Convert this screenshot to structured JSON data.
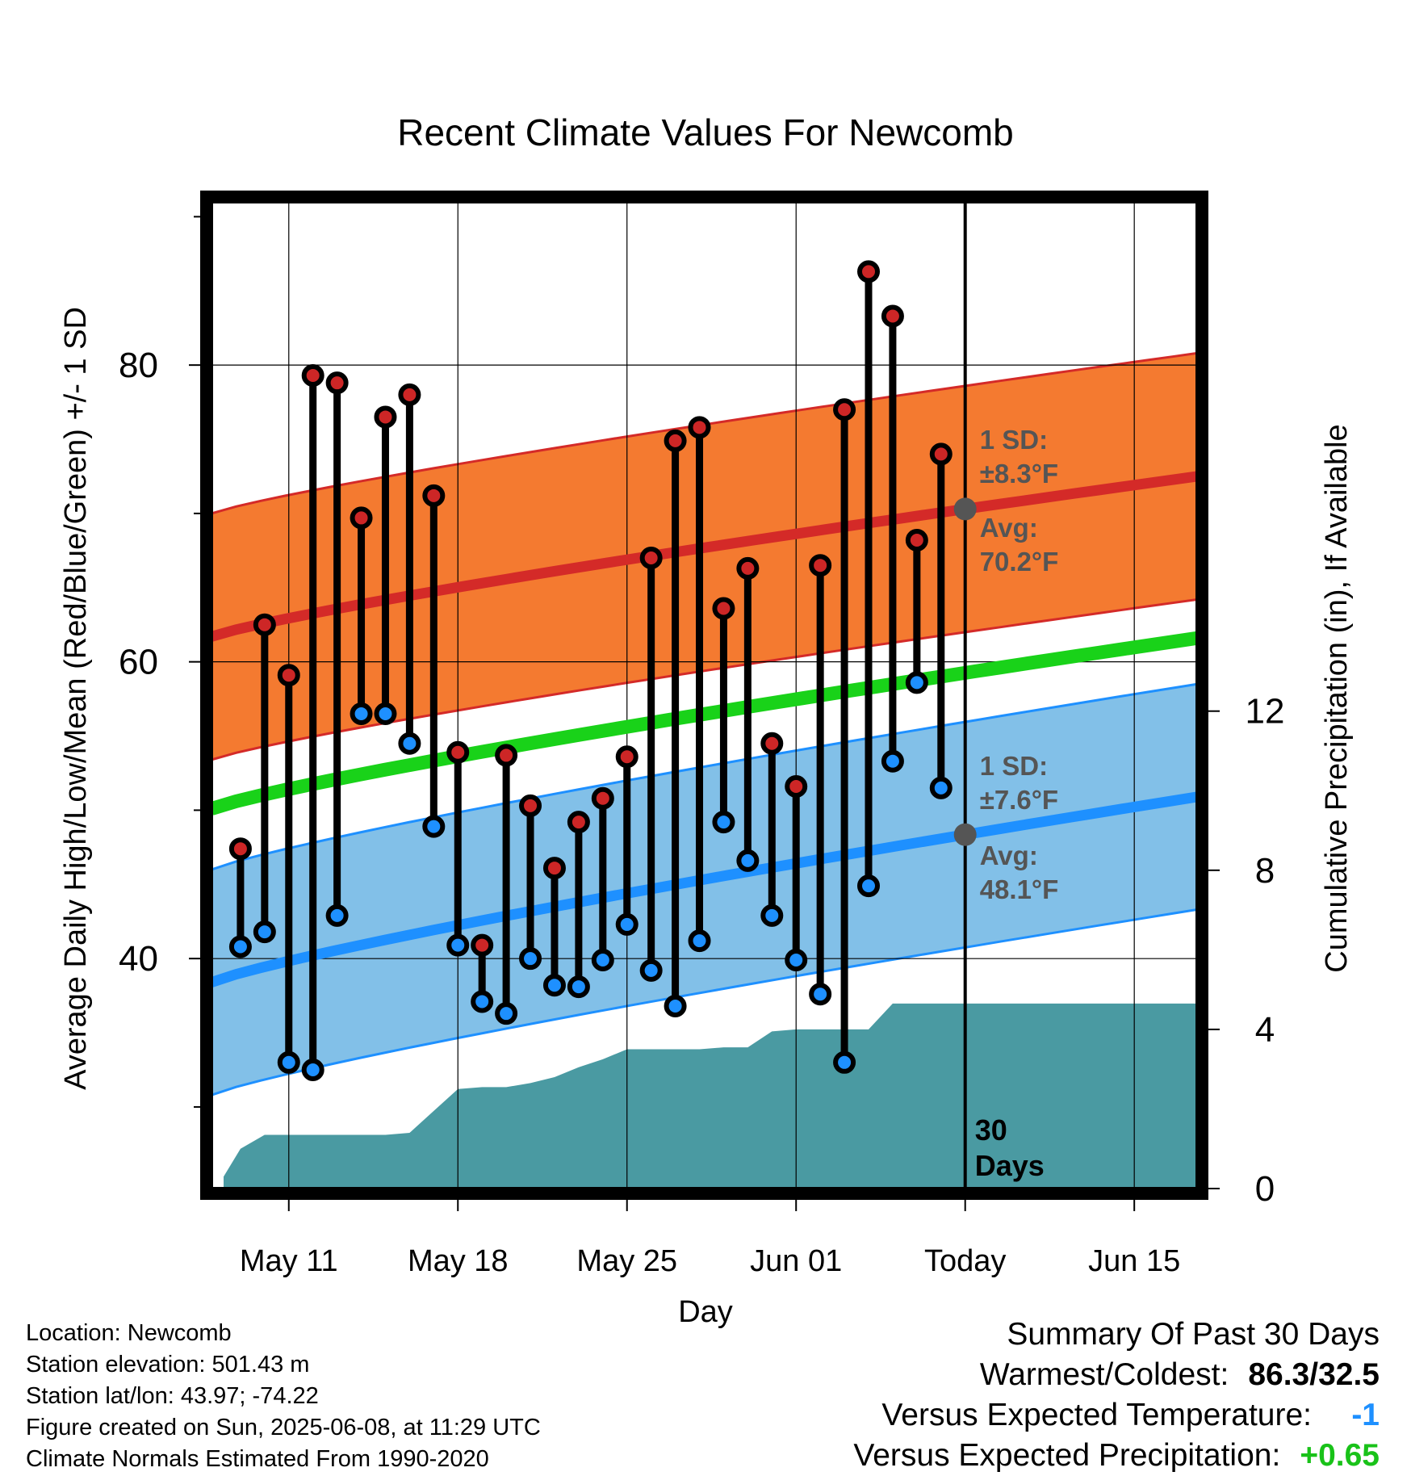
{
  "chart_data": {
    "type": "line",
    "title": "Recent Climate Values For Newcomb",
    "xlabel": "Day",
    "ylabel_left": "Average Daily High/Low/Mean (Red/Blue/Green) +/- 1 SD",
    "ylabel_right": "Cumulative Precipitation (in), If Available",
    "x_tick_labels": [
      "May 11",
      "May 18",
      "May 25",
      "Jun 01",
      "Today",
      "Jun 15"
    ],
    "x_tick_days": [
      11,
      18,
      25,
      32,
      39,
      46
    ],
    "xlim": [
      7.8,
      48.6
    ],
    "ylim_left": [
      24.5,
      91
    ],
    "y_left_major_ticks": [
      40,
      60,
      80
    ],
    "y_left_minor_ticks": [
      30,
      50,
      70,
      90
    ],
    "ylim_right": [
      0,
      24.8
    ],
    "y_right_ticks": [
      0,
      4,
      8,
      12
    ],
    "today_day": 39,
    "today_label": "30\nDays",
    "grid": true,
    "colors": {
      "high_band": "#f47a30",
      "high_mean": "#d42a28",
      "low_band": "#82c0e8",
      "low_mean": "#1e90ff",
      "daily_mean": "#19d219",
      "precip": "#4a9aa2",
      "high_marker": "#cd2626",
      "low_marker": "#1e90ff",
      "avg_dot": "#555555",
      "annotation": "#555555",
      "temp_departure": "#1e90ff",
      "precip_departure": "#19c219"
    },
    "normals": {
      "high_avg_start": 61.7,
      "high_avg_end": 72.5,
      "high_sd": 8.3,
      "low_avg_start": 38.4,
      "low_avg_end": 50.9,
      "low_sd": 7.6,
      "mean_start": 50.1,
      "mean_end": 61.6
    },
    "annotations": {
      "high_sd_label": "1 SD:",
      "high_sd_value": "±8.3°F",
      "high_avg_label": "Avg:",
      "high_avg_value": "70.2°F",
      "low_sd_label": "1 SD:",
      "low_sd_value": "±7.6°F",
      "low_avg_label": "Avg:",
      "low_avg_value": "48.1°F"
    },
    "series": [
      {
        "name": "Daily High",
        "x": [
          9,
          10,
          11,
          12,
          13,
          14,
          15,
          16,
          17,
          18,
          19,
          20,
          21,
          22,
          23,
          24,
          25,
          26,
          27,
          28,
          29,
          30,
          31,
          32,
          33,
          34,
          35,
          36,
          37,
          38
        ],
        "values": [
          47.4,
          62.5,
          59.1,
          79.3,
          78.8,
          69.7,
          76.5,
          78.0,
          71.2,
          53.9,
          40.9,
          53.7,
          50.3,
          46.1,
          49.2,
          50.8,
          53.6,
          67.0,
          74.9,
          75.8,
          63.6,
          66.3,
          54.5,
          51.6,
          66.5,
          77.0,
          86.3,
          83.3,
          68.2,
          74.0
        ]
      },
      {
        "name": "Daily Low",
        "x": [
          9,
          10,
          11,
          12,
          13,
          14,
          15,
          16,
          17,
          18,
          19,
          20,
          21,
          22,
          23,
          24,
          25,
          26,
          27,
          28,
          29,
          30,
          31,
          32,
          33,
          34,
          35,
          36,
          37,
          38
        ],
        "values": [
          40.8,
          41.8,
          33.0,
          32.5,
          42.9,
          56.5,
          56.5,
          54.5,
          48.9,
          40.9,
          37.1,
          36.3,
          40.0,
          38.2,
          38.1,
          39.9,
          42.3,
          39.2,
          36.8,
          41.2,
          49.2,
          46.6,
          42.9,
          39.9,
          37.6,
          33.0,
          44.9,
          53.3,
          58.6,
          51.5
        ]
      },
      {
        "name": "Cumulative Precipitation",
        "x": [
          8.3,
          9,
          10,
          11,
          12,
          13,
          14,
          15,
          16,
          17,
          18,
          19,
          20,
          21,
          22,
          23,
          24,
          25,
          26,
          27,
          28,
          29,
          30,
          31,
          32,
          33,
          34,
          35,
          36,
          37,
          38,
          39,
          40,
          48.6
        ],
        "values": [
          0.3,
          1.0,
          1.35,
          1.35,
          1.35,
          1.35,
          1.35,
          1.35,
          1.4,
          1.95,
          2.5,
          2.55,
          2.55,
          2.65,
          2.8,
          3.05,
          3.25,
          3.5,
          3.5,
          3.5,
          3.5,
          3.55,
          3.55,
          3.95,
          4.0,
          4.0,
          4.0,
          4.0,
          4.65,
          4.65,
          4.65,
          4.65,
          4.65,
          4.65
        ]
      }
    ]
  },
  "footer": {
    "location": "Location: Newcomb",
    "elevation": "Station elevation: 501.43 m",
    "latlon": "Station lat/lon: 43.97; -74.22",
    "created": "Figure created on Sun, 2025-06-08, at 11:29 UTC",
    "normals": "Climate Normals Estimated From 1990-2020"
  },
  "summary": {
    "heading": "Summary Of Past 30 Days",
    "warmest_label": "Warmest/Coldest:",
    "warmest_value": "86.3/32.5",
    "temp_label": "Versus Expected Temperature:",
    "temp_value": "-1",
    "precip_label": "Versus Expected Precipitation:",
    "precip_value": "+0.65"
  }
}
